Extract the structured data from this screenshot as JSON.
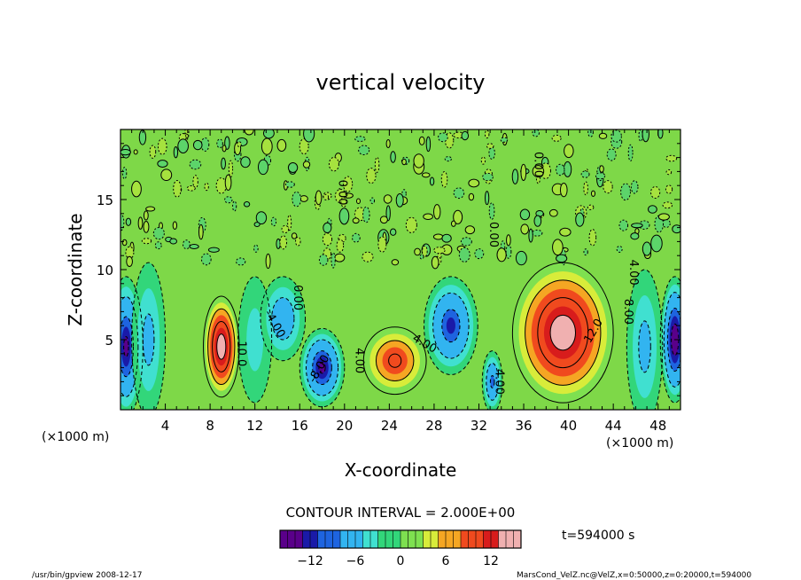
{
  "chart_data": {
    "type": "heatmap",
    "title": "vertical velocity",
    "xlabel": "X-coordinate",
    "ylabel": "Z-coordinate",
    "x_unit_left": "(×1000 m)",
    "x_unit_right": "(×1000 m)",
    "xlim": [
      0,
      50
    ],
    "ylim": [
      0,
      20
    ],
    "x_ticks": [
      4,
      8,
      12,
      16,
      20,
      24,
      28,
      32,
      36,
      40,
      44,
      48
    ],
    "y_ticks": [
      5,
      10,
      15
    ],
    "contour_interval_text": "CONTOUR INTERVAL = 2.000E+00",
    "time_text": "t=594000 s",
    "colorbar": {
      "min": -16,
      "max": 16,
      "ticks": [
        -12,
        -6,
        0,
        6,
        12
      ],
      "colors": [
        "#5a008a",
        "#1a1aa8",
        "#1e64e0",
        "#32b4f0",
        "#40e0d0",
        "#32d67a",
        "#7ee050",
        "#d8ec3a",
        "#f5a623",
        "#f04a1e",
        "#d81c1c",
        "#f0b0b0"
      ]
    },
    "contour_labels": [
      {
        "text": "0.00",
        "x": 15.5,
        "z": 8.0,
        "angle": 90
      },
      {
        "text": "-4.00",
        "x": 13.5,
        "z": 6.0,
        "angle": 60
      },
      {
        "text": "4.00",
        "x": 21.0,
        "z": 3.5,
        "angle": 90
      },
      {
        "text": "-8.00",
        "x": 18.0,
        "z": 2.8,
        "angle": -60
      },
      {
        "text": "4.00",
        "x": 27.0,
        "z": 4.5,
        "angle": 30
      },
      {
        "text": "10.0",
        "x": 10.5,
        "z": 4.0,
        "angle": 90
      },
      {
        "text": "12.0",
        "x": 42.5,
        "z": 5.5,
        "angle": -60
      },
      {
        "text": "8.00",
        "x": 45.0,
        "z": 7.0,
        "angle": 90
      },
      {
        "text": "4.00",
        "x": 45.5,
        "z": 9.8,
        "angle": 90
      },
      {
        "text": "0.00",
        "x": 37.0,
        "z": 17.5,
        "angle": 90
      },
      {
        "text": "0.00",
        "x": 33.0,
        "z": 12.5,
        "angle": 90
      },
      {
        "text": "0.00",
        "x": 19.5,
        "z": 15.5,
        "angle": 90
      },
      {
        "text": "4.00",
        "x": 33.5,
        "z": 2.0,
        "angle": 90
      }
    ],
    "features": [
      {
        "x": 0.5,
        "z": 4.5,
        "value": -14,
        "rx": 1.5,
        "rz": 5.0
      },
      {
        "x": 2.5,
        "z": 5.0,
        "value": -6,
        "rx": 1.5,
        "rz": 5.5
      },
      {
        "x": 9.0,
        "z": 4.5,
        "value": 16,
        "rx": 1.6,
        "rz": 3.6
      },
      {
        "x": 12.0,
        "z": 5.0,
        "value": -4,
        "rx": 1.5,
        "rz": 4.5
      },
      {
        "x": 14.5,
        "z": 6.5,
        "value": -7,
        "rx": 2.0,
        "rz": 3.0
      },
      {
        "x": 18.0,
        "z": 3.0,
        "value": -14,
        "rx": 2.0,
        "rz": 2.8
      },
      {
        "x": 24.5,
        "z": 3.5,
        "value": 9,
        "rx": 2.8,
        "rz": 2.4
      },
      {
        "x": 29.5,
        "z": 6.0,
        "value": -11,
        "rx": 2.4,
        "rz": 3.5
      },
      {
        "x": 33.2,
        "z": 2.0,
        "value": -9,
        "rx": 0.9,
        "rz": 2.2
      },
      {
        "x": 39.5,
        "z": 5.5,
        "value": 16,
        "rx": 4.5,
        "rz": 5.0
      },
      {
        "x": 46.8,
        "z": 4.5,
        "value": -6,
        "rx": 1.6,
        "rz": 5.5
      },
      {
        "x": 49.5,
        "z": 5.0,
        "value": -15,
        "rx": 1.3,
        "rz": 4.5
      }
    ]
  },
  "footer": {
    "left": "/usr/bin/gpview   2008-12-17",
    "right": "MarsCond_VelZ.nc@VelZ,x=0:50000,z=0:20000,t=594000"
  }
}
